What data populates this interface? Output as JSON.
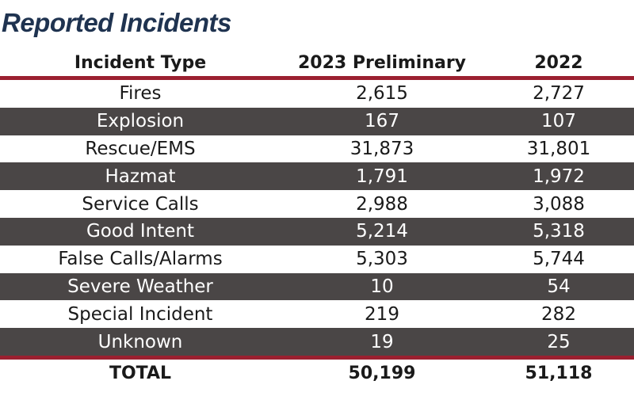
{
  "title": "Reported Incidents",
  "columns": [
    "Incident Type",
    "2023 Preliminary",
    "2022"
  ],
  "rows": [
    {
      "type": "Fires",
      "y2023": "2,615",
      "y2022": "2,727"
    },
    {
      "type": "Explosion",
      "y2023": "167",
      "y2022": "107"
    },
    {
      "type": "Rescue/EMS",
      "y2023": "31,873",
      "y2022": "31,801"
    },
    {
      "type": "Hazmat",
      "y2023": "1,791",
      "y2022": "1,972"
    },
    {
      "type": "Service Calls",
      "y2023": "2,988",
      "y2022": "3,088"
    },
    {
      "type": "Good Intent",
      "y2023": "5,214",
      "y2022": "5,318"
    },
    {
      "type": "False Calls/Alarms",
      "y2023": "5,303",
      "y2022": "5,744"
    },
    {
      "type": "Severe Weather",
      "y2023": "10",
      "y2022": "54"
    },
    {
      "type": "Special Incident",
      "y2023": "219",
      "y2022": "282"
    },
    {
      "type": "Unknown",
      "y2023": "19",
      "y2022": "25"
    }
  ],
  "total": {
    "label": "TOTAL",
    "y2023": "50,199",
    "y2022": "51,118"
  },
  "colors": {
    "title": "#1f3350",
    "rule": "#9b2030",
    "row_dark": "#4a4646"
  }
}
